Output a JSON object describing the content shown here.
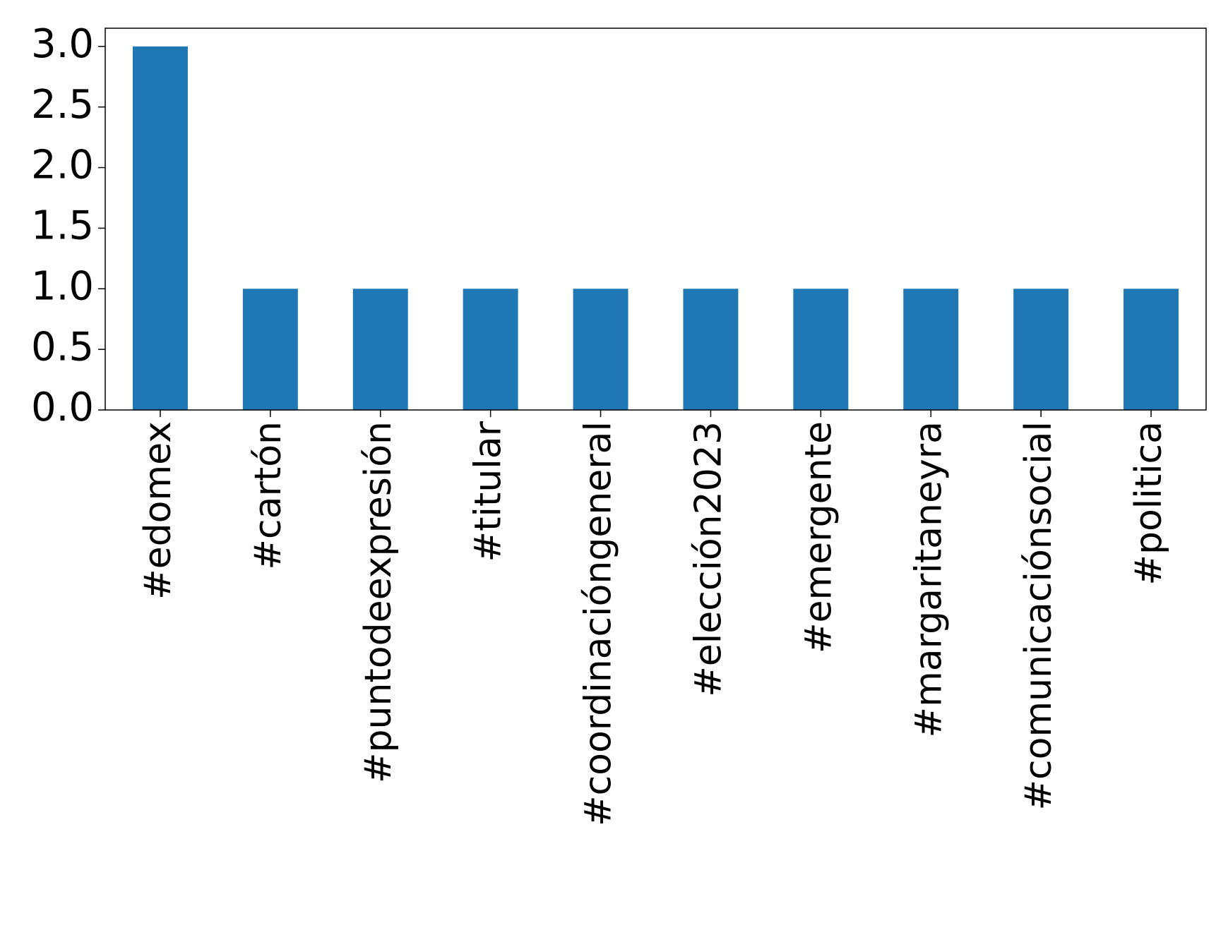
{
  "chart_data": {
    "type": "bar",
    "categories": [
      "#edomex",
      "#cartón",
      "#puntodeexpresión",
      "#titular",
      "#coordinacióngeneral",
      "#elección2023",
      "#emergente",
      "#margaritaneyra",
      "#comunicaciónsocial",
      "#politica"
    ],
    "values": [
      3,
      1,
      1,
      1,
      1,
      1,
      1,
      1,
      1,
      1
    ],
    "color": "#1f77b4",
    "ylim": [
      0,
      3.15
    ],
    "yticks": [
      {
        "value": 0,
        "label": "0.0"
      },
      0.5,
      {
        "value": 1,
        "label": "1.0"
      },
      1.5,
      {
        "value": 2,
        "label": "2.0"
      },
      2.5,
      {
        "value": 3,
        "label": "3.0"
      }
    ],
    "grid": false
  }
}
